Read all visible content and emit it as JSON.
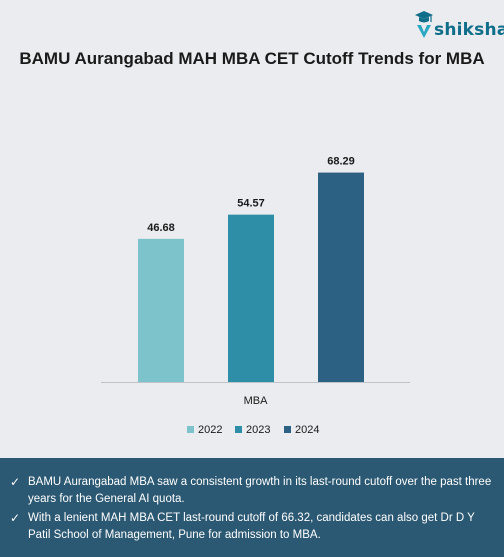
{
  "brand": {
    "name": "shiksha",
    "icon": "graduation-cap-icon",
    "color": "#0f6e8a"
  },
  "title": "BAMU Aurangabad MAH MBA CET Cutoff Trends for MBA",
  "chart_data": {
    "type": "bar",
    "categories": [
      "MBA"
    ],
    "series": [
      {
        "name": "2022",
        "values": [
          46.68
        ],
        "color": "#7cc3cb"
      },
      {
        "name": "2023",
        "values": [
          54.57
        ],
        "color": "#2e8ea7"
      },
      {
        "name": "2024",
        "values": [
          68.29
        ],
        "color": "#2c6183"
      }
    ],
    "ylim": [
      0,
      75
    ],
    "grid": false,
    "legend_position": "bottom"
  },
  "footer": {
    "items": [
      "BAMU Aurangabad MBA saw a consistent growth in its last-round cutoff over the past three years for the General AI quota.",
      "With a lenient MAH MBA CET last-round cutoff of 66.32, candidates can also get Dr D Y Patil School of Management, Pune for admission to MBA."
    ]
  }
}
